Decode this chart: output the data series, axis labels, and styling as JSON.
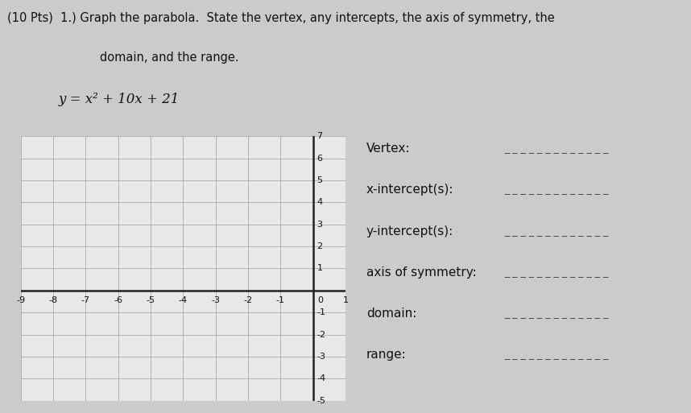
{
  "title_line1": "(10 Pts)  1.) Graph the parabola.  State the vertex, any intercepts, the axis of symmetry, the",
  "title_line2": "domain, and the range.",
  "equation": "y = x² + 10x + 21",
  "x_min": -9,
  "x_max": 1,
  "y_min": -5,
  "y_max": 7,
  "x_ticks": [
    -9,
    -8,
    -7,
    -6,
    -5,
    -4,
    -3,
    -2,
    -1,
    0,
    1
  ],
  "y_ticks": [
    -5,
    -4,
    -3,
    -2,
    -1,
    0,
    1,
    2,
    3,
    4,
    5,
    6,
    7
  ],
  "grid_color": "#aaaaaa",
  "axis_color": "#222222",
  "background_color": "#cbcbcb",
  "paper_color": "#e8e8e8",
  "label_fields": [
    "Vertex:",
    "x-intercept(s):",
    "y-intercept(s):",
    "axis of symmetry:",
    "domain:",
    "range:"
  ],
  "fig_width": 8.58,
  "fig_height": 5.13,
  "title_fontsize": 10.5,
  "label_fontsize": 11,
  "tick_fontsize": 8
}
